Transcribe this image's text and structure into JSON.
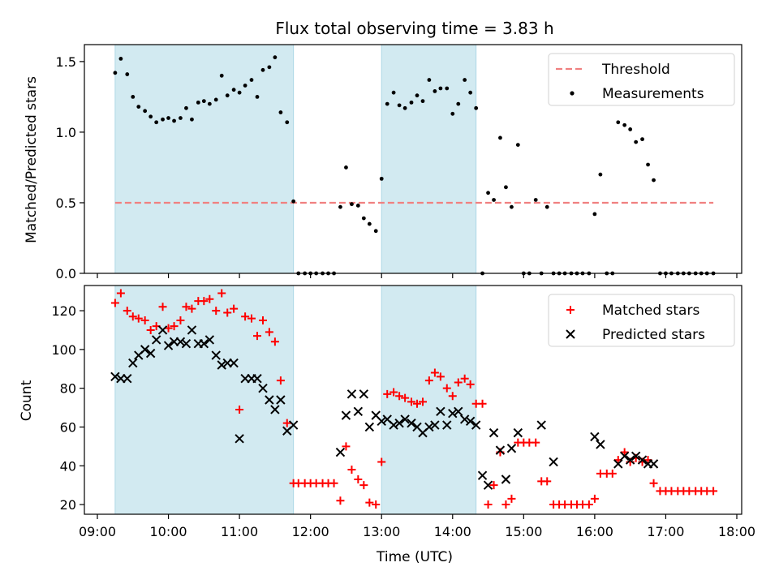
{
  "chart_data": {
    "title": "Flux total observing time = 3.83 h",
    "xlabel": "Time (UTC)",
    "xticks": [
      "09:00",
      "10:00",
      "11:00",
      "12:00",
      "13:00",
      "14:00",
      "15:00",
      "16:00",
      "17:00",
      "18:00"
    ],
    "xlim": [
      9.0,
      18.08
    ],
    "shaded_intervals": [
      [
        9.25,
        11.76
      ],
      [
        13.0,
        14.33
      ]
    ],
    "shade_color": "#add8e6",
    "panels": [
      {
        "type": "scatter",
        "ylabel": "Matched/Predicted stars",
        "ylim": [
          0,
          1.62
        ],
        "yticks": [
          "0.0",
          "0.5",
          "1.0",
          "1.5"
        ],
        "threshold": {
          "name": "Threshold",
          "y": 0.5,
          "x_range": [
            9.25,
            17.67
          ],
          "color": "#f08080"
        },
        "series": [
          {
            "name": "Measurements",
            "color": "#000000",
            "x": [
              9.25,
              9.33,
              9.42,
              9.5,
              9.58,
              9.67,
              9.75,
              9.83,
              9.92,
              10.0,
              10.08,
              10.17,
              10.25,
              10.33,
              10.42,
              10.5,
              10.58,
              10.67,
              10.75,
              10.83,
              10.92,
              11.0,
              11.08,
              11.17,
              11.25,
              11.33,
              11.42,
              11.5,
              11.58,
              11.67,
              11.76,
              11.83,
              11.92,
              12.0,
              12.08,
              12.17,
              12.25,
              12.33,
              12.42,
              12.5,
              12.58,
              12.67,
              12.75,
              12.83,
              12.92,
              13.0,
              13.08,
              13.17,
              13.25,
              13.33,
              13.42,
              13.5,
              13.58,
              13.67,
              13.75,
              13.83,
              13.92,
              14.0,
              14.08,
              14.17,
              14.25,
              14.33,
              14.42,
              14.5,
              14.58,
              14.67,
              14.75,
              14.83,
              14.92,
              15.0,
              15.08,
              15.17,
              15.25,
              15.33,
              15.42,
              15.5,
              15.58,
              15.67,
              15.75,
              15.83,
              15.92,
              16.0,
              16.08,
              16.17,
              16.25,
              16.33,
              16.42,
              16.5,
              16.58,
              16.67,
              16.75,
              16.83,
              16.92,
              17.0,
              17.08,
              17.17,
              17.25,
              17.33,
              17.42,
              17.5,
              17.58,
              17.67
            ],
            "y": [
              1.42,
              1.52,
              1.41,
              1.25,
              1.18,
              1.15,
              1.11,
              1.07,
              1.09,
              1.1,
              1.08,
              1.1,
              1.17,
              1.09,
              1.21,
              1.22,
              1.2,
              1.23,
              1.4,
              1.26,
              1.3,
              1.28,
              1.33,
              1.37,
              1.25,
              1.44,
              1.46,
              1.53,
              1.14,
              1.07,
              0.51,
              0.0,
              0.0,
              0.0,
              0.0,
              0.0,
              0.0,
              0.0,
              0.47,
              0.75,
              0.49,
              0.48,
              0.39,
              0.35,
              0.3,
              0.67,
              1.2,
              1.28,
              1.19,
              1.17,
              1.21,
              1.26,
              1.22,
              1.37,
              1.29,
              1.31,
              1.31,
              1.13,
              1.2,
              1.37,
              1.28,
              1.17,
              0.0,
              0.57,
              0.52,
              0.96,
              0.61,
              0.47,
              0.91,
              0.0,
              0.0,
              0.52,
              0.0,
              0.47,
              0.0,
              0.0,
              0.0,
              0.0,
              0.0,
              0.0,
              0.0,
              0.42,
              0.7,
              0.0,
              0.0,
              1.07,
              1.05,
              1.02,
              0.93,
              0.95,
              0.77,
              0.66,
              0.0,
              0.0,
              0.0,
              0.0,
              0.0,
              0.0,
              0.0,
              0.0,
              0.0,
              0.0
            ]
          }
        ],
        "legend": {
          "placement": "top-right",
          "entries": [
            "Threshold",
            "Measurements"
          ]
        }
      },
      {
        "type": "scatter",
        "ylabel": "Count",
        "ylim": [
          15,
          133
        ],
        "yticks": [
          "20",
          "40",
          "60",
          "80",
          "100",
          "120"
        ],
        "series": [
          {
            "name": "Matched stars",
            "marker": "plus",
            "color": "#ff0000",
            "x": [
              9.25,
              9.33,
              9.42,
              9.5,
              9.58,
              9.67,
              9.75,
              9.83,
              9.92,
              10.0,
              10.08,
              10.17,
              10.25,
              10.33,
              10.42,
              10.5,
              10.58,
              10.67,
              10.75,
              10.83,
              10.92,
              11.0,
              11.08,
              11.17,
              11.25,
              11.33,
              11.42,
              11.5,
              11.58,
              11.67,
              11.76,
              11.83,
              11.92,
              12.0,
              12.08,
              12.17,
              12.25,
              12.33,
              12.42,
              12.5,
              12.58,
              12.67,
              12.75,
              12.83,
              12.92,
              13.0,
              13.08,
              13.17,
              13.25,
              13.33,
              13.42,
              13.5,
              13.58,
              13.67,
              13.75,
              13.83,
              13.92,
              14.0,
              14.08,
              14.17,
              14.25,
              14.33,
              14.42,
              14.5,
              14.58,
              14.67,
              14.75,
              14.83,
              14.92,
              15.0,
              15.08,
              15.17,
              15.25,
              15.33,
              15.42,
              15.5,
              15.58,
              15.67,
              15.75,
              15.83,
              15.92,
              16.0,
              16.08,
              16.17,
              16.25,
              16.33,
              16.42,
              16.5,
              16.58,
              16.67,
              16.75,
              16.83,
              16.92,
              17.0,
              17.08,
              17.17,
              17.25,
              17.33,
              17.42,
              17.5,
              17.58,
              17.67
            ],
            "y": [
              124,
              129,
              120,
              117,
              116,
              115,
              110,
              112,
              122,
              111,
              112,
              115,
              122,
              121,
              125,
              125,
              126,
              120,
              129,
              119,
              121,
              69,
              117,
              116,
              107,
              115,
              109,
              104,
              84,
              62,
              31,
              31,
              31,
              31,
              31,
              31,
              31,
              31,
              22,
              50,
              38,
              33,
              30,
              21,
              20,
              42,
              77,
              78,
              76,
              75,
              73,
              72,
              73,
              84,
              88,
              86,
              80,
              76,
              83,
              85,
              82,
              72,
              72,
              20,
              30,
              47,
              20,
              23,
              52,
              52,
              52,
              52,
              32,
              32,
              20,
              20,
              20,
              20,
              20,
              20,
              20,
              23,
              36,
              36,
              36,
              43,
              47,
              42,
              44,
              42,
              43,
              31,
              27,
              27,
              27,
              27,
              27,
              27,
              27,
              27,
              27,
              27
            ]
          },
          {
            "name": "Predicted stars",
            "marker": "x",
            "color": "#000000",
            "x": [
              9.25,
              9.33,
              9.42,
              9.5,
              9.58,
              9.67,
              9.75,
              9.83,
              9.92,
              10.0,
              10.08,
              10.17,
              10.25,
              10.33,
              10.42,
              10.5,
              10.58,
              10.67,
              10.75,
              10.83,
              10.92,
              11.0,
              11.08,
              11.17,
              11.25,
              11.33,
              11.42,
              11.5,
              11.58,
              11.67,
              11.76,
              12.42,
              12.5,
              12.58,
              12.67,
              12.75,
              12.83,
              12.92,
              13.0,
              13.08,
              13.17,
              13.25,
              13.33,
              13.42,
              13.5,
              13.58,
              13.67,
              13.75,
              13.83,
              13.92,
              14.0,
              14.08,
              14.17,
              14.25,
              14.33,
              14.42,
              14.5,
              14.58,
              14.67,
              14.75,
              14.83,
              14.92,
              15.25,
              15.42,
              16.0,
              16.08,
              16.33,
              16.42,
              16.5,
              16.58,
              16.67,
              16.75,
              16.83
            ],
            "y": [
              86,
              85,
              85,
              93,
              97,
              100,
              98,
              105,
              110,
              102,
              104,
              104,
              103,
              110,
              103,
              103,
              105,
              97,
              92,
              93,
              93,
              54,
              85,
              85,
              85,
              80,
              74,
              69,
              74,
              58,
              61,
              47,
              66,
              77,
              68,
              77,
              60,
              66,
              63,
              64,
              61,
              62,
              64,
              62,
              60,
              57,
              60,
              61,
              68,
              61,
              67,
              68,
              64,
              63,
              61,
              35,
              30,
              57,
              48,
              33,
              49,
              57,
              61,
              42,
              55,
              51,
              41,
              45,
              43,
              45,
              43,
              41,
              41
            ]
          }
        ],
        "legend": {
          "placement": "top-right",
          "entries": [
            "Matched stars",
            "Predicted stars"
          ]
        }
      }
    ]
  }
}
